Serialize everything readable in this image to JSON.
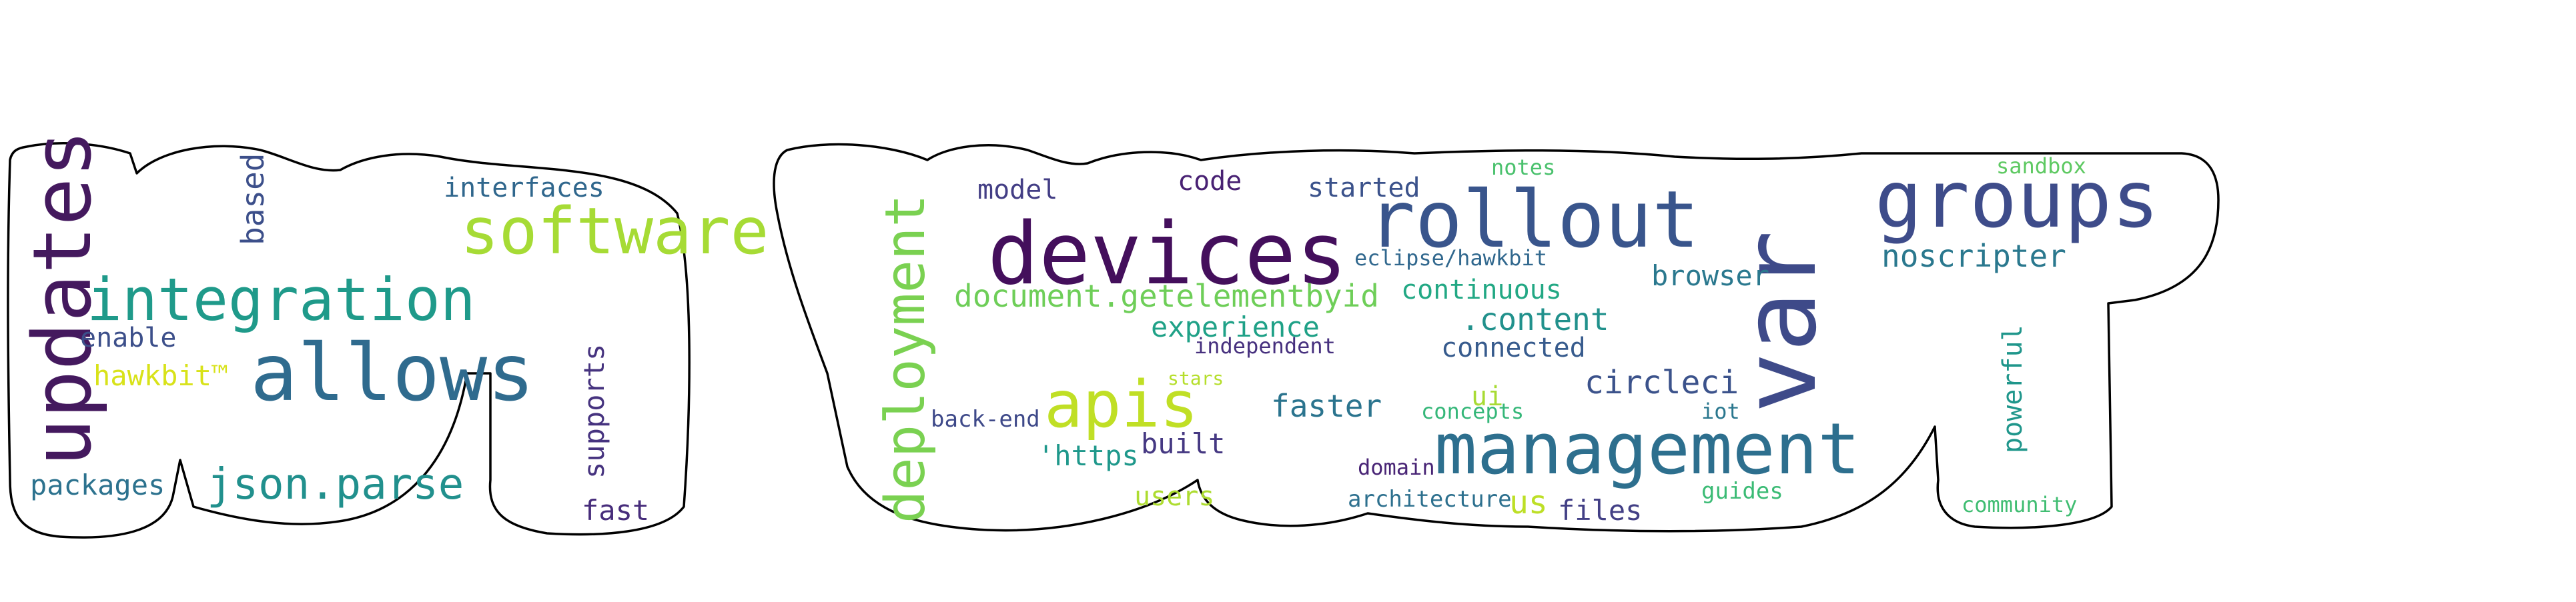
{
  "words": [
    {
      "text": "updates",
      "color": "#44195e"
    },
    {
      "text": "based",
      "color": "#3c4f8a"
    },
    {
      "text": "interfaces",
      "color": "#30678d"
    },
    {
      "text": "software",
      "color": "#a6db35"
    },
    {
      "text": "integration",
      "color": "#1f9a8a"
    },
    {
      "text": "enable",
      "color": "#3c4f8a"
    },
    {
      "text": "hawkbit™",
      "color": "#d8e219"
    },
    {
      "text": "allows",
      "color": "#2f6b8e"
    },
    {
      "text": "supports",
      "color": "#46337f"
    },
    {
      "text": "json.parse",
      "color": "#21908d"
    },
    {
      "text": "packages",
      "color": "#2c728e"
    },
    {
      "text": "fast",
      "color": "#472d7b"
    },
    {
      "text": "deployment",
      "color": "#7ad151"
    },
    {
      "text": "model",
      "color": "#433e85"
    },
    {
      "text": "code",
      "color": "#482173"
    },
    {
      "text": "devices",
      "color": "#440f5c"
    },
    {
      "text": "started",
      "color": "#3b528b"
    },
    {
      "text": "notes",
      "color": "#4ac16d"
    },
    {
      "text": "rollout",
      "color": "#39558c"
    },
    {
      "text": "eclipse/hawkbit",
      "color": "#31688e"
    },
    {
      "text": "var",
      "color": "#3e4a89"
    },
    {
      "text": "groups",
      "color": "#3e4c8a"
    },
    {
      "text": "sandbox",
      "color": "#5ec962"
    },
    {
      "text": "noscripter",
      "color": "#2a788e"
    },
    {
      "text": "document.getelementbyid",
      "color": "#6ece58"
    },
    {
      "text": "continuous",
      "color": "#22a884"
    },
    {
      "text": "browser",
      "color": "#2a788e"
    },
    {
      "text": "experience",
      "color": "#1fa187"
    },
    {
      "text": ".content",
      "color": "#21918c"
    },
    {
      "text": "independent",
      "color": "#46307e"
    },
    {
      "text": "connected",
      "color": "#375b8d"
    },
    {
      "text": "stars",
      "color": "#b5de2b"
    },
    {
      "text": "apis",
      "color": "#c0df25"
    },
    {
      "text": "faster",
      "color": "#2b748e"
    },
    {
      "text": "ui",
      "color": "#a8db34"
    },
    {
      "text": "circleci",
      "color": "#3b528b"
    },
    {
      "text": "back-end",
      "color": "#3e4989"
    },
    {
      "text": "concepts",
      "color": "#35b779"
    },
    {
      "text": "iot",
      "color": "#2a778e"
    },
    {
      "text": "management",
      "color": "#2d6f8e"
    },
    {
      "text": "'https",
      "color": "#1f988b"
    },
    {
      "text": "built",
      "color": "#453882"
    },
    {
      "text": "domain",
      "color": "#482475"
    },
    {
      "text": "users",
      "color": "#addc30"
    },
    {
      "text": "architecture",
      "color": "#2d708e"
    },
    {
      "text": "us",
      "color": "#bddf26"
    },
    {
      "text": "files",
      "color": "#423f85"
    },
    {
      "text": "guides",
      "color": "#3bbb75"
    },
    {
      "text": "powerful",
      "color": "#1f968b"
    },
    {
      "text": "community",
      "color": "#40bd72"
    }
  ]
}
